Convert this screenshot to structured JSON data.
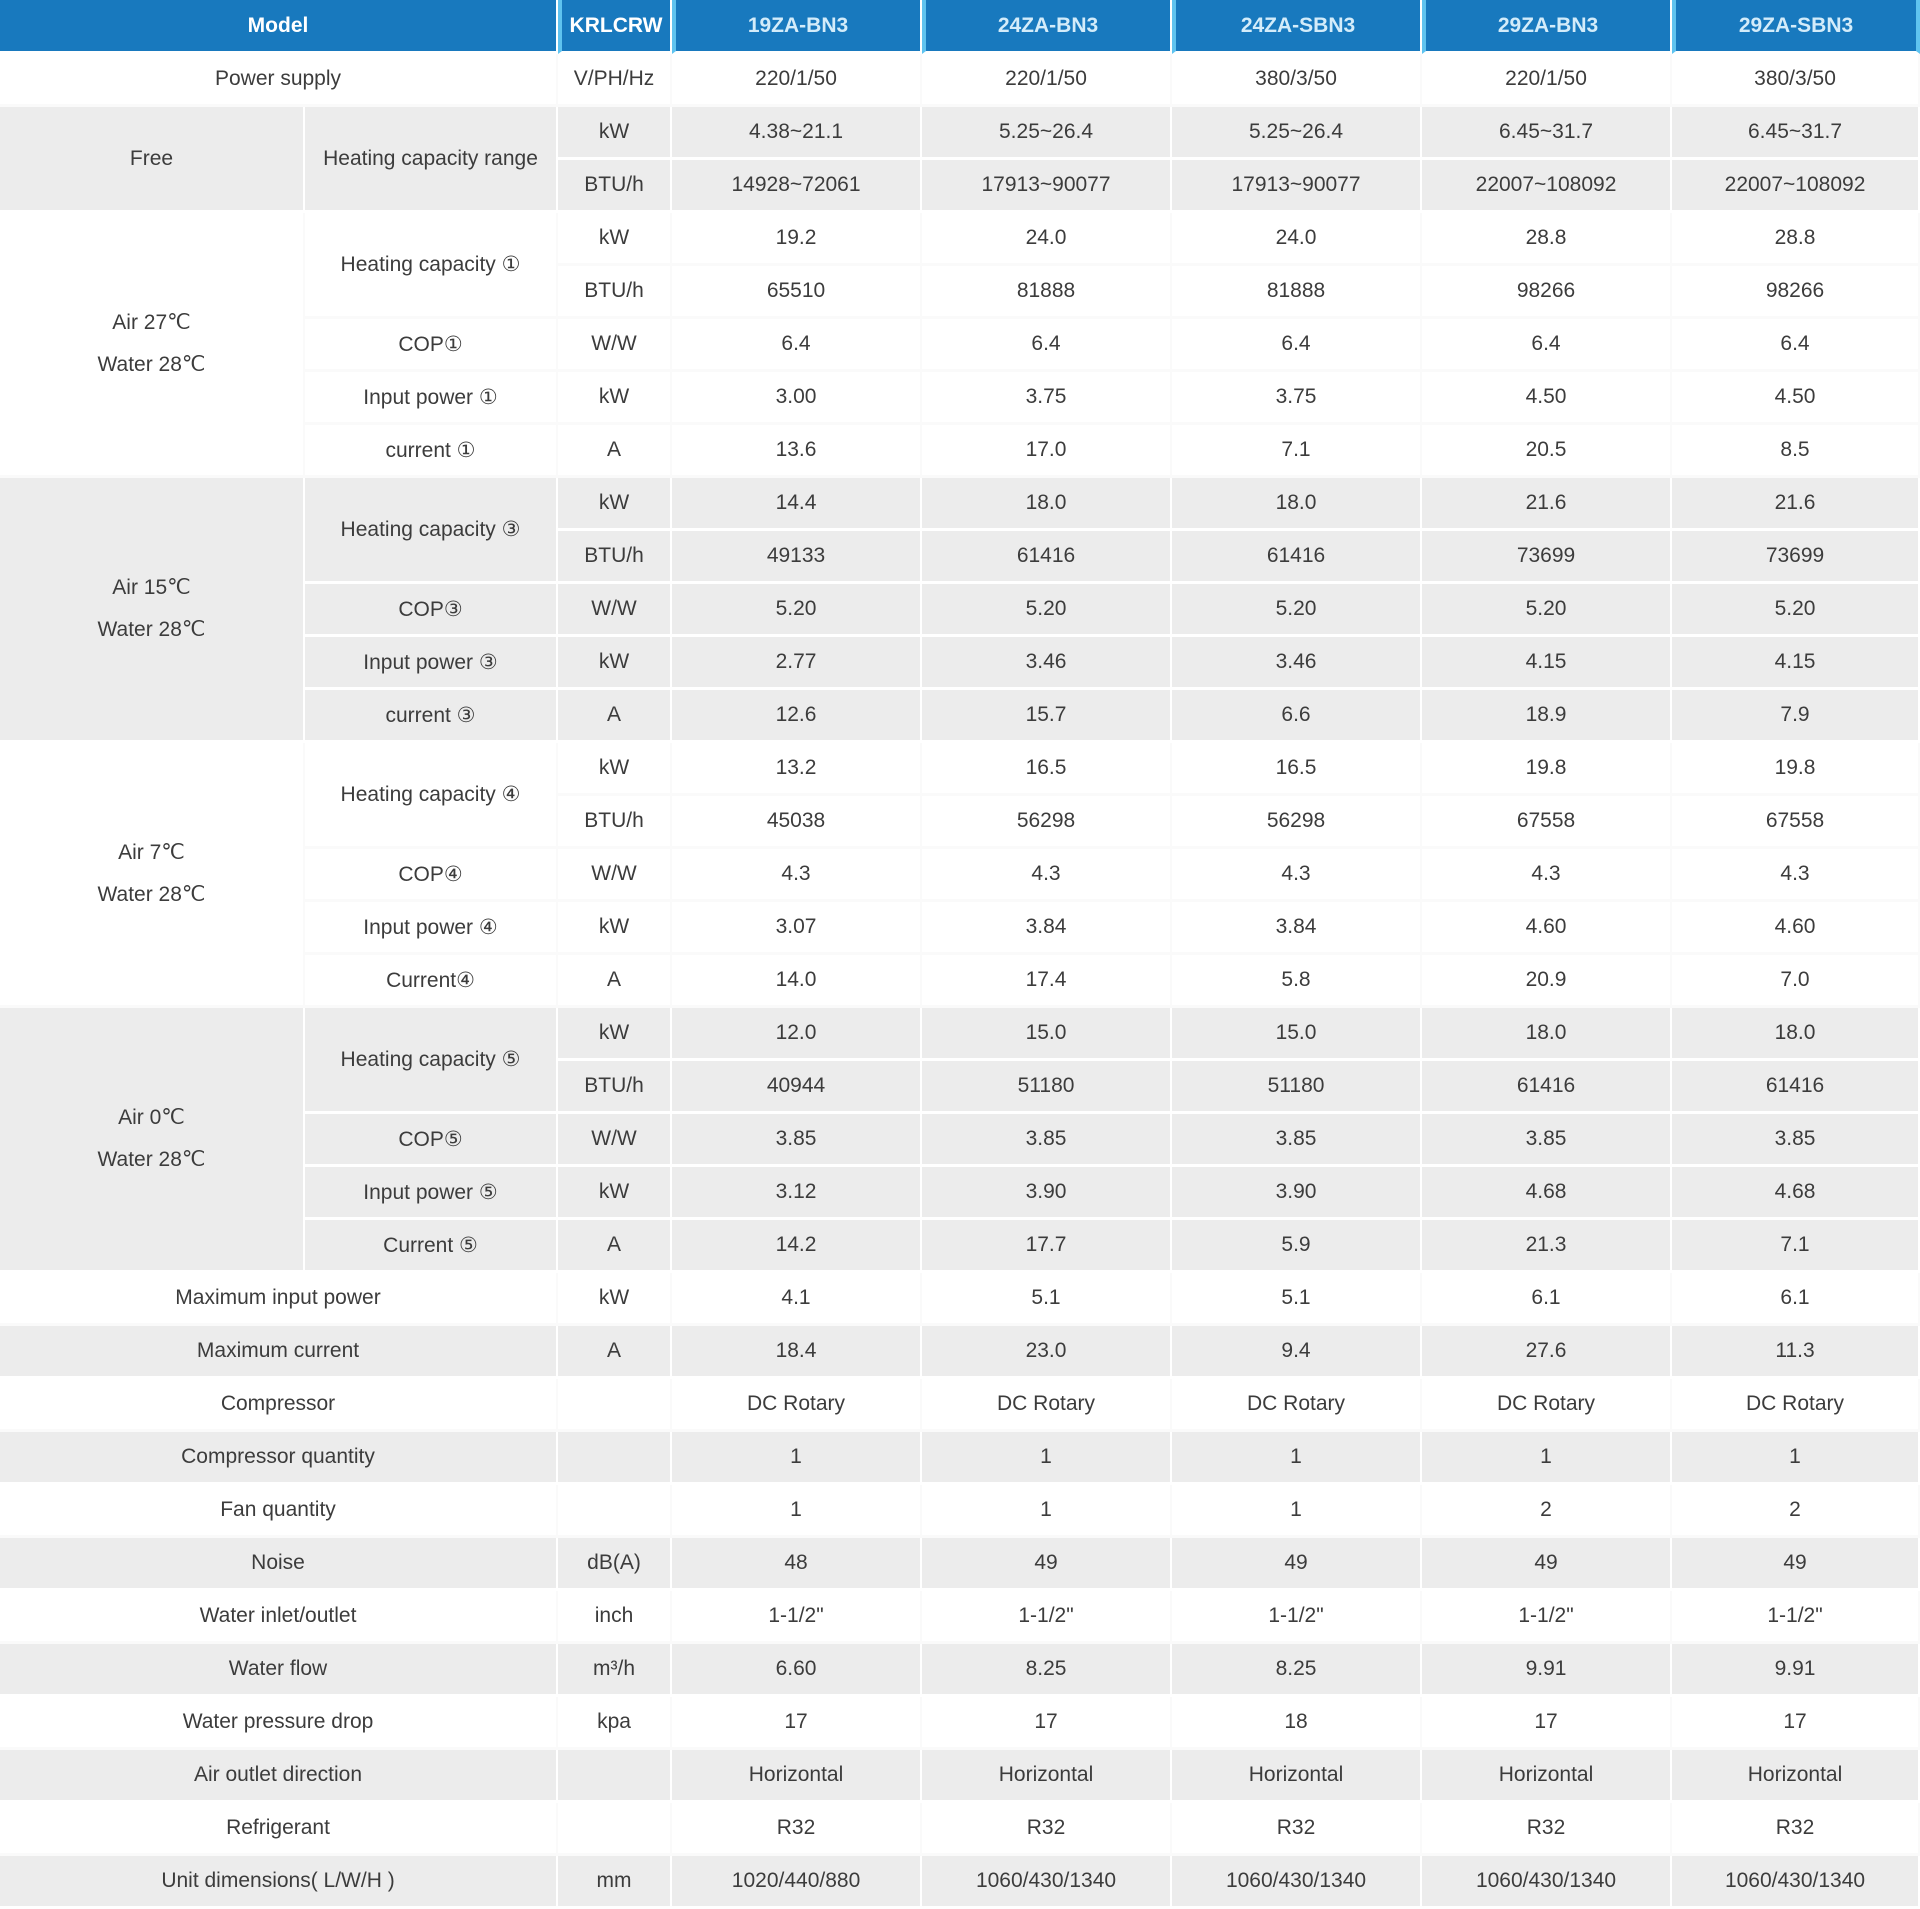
{
  "colors": {
    "header_bg": "#1879BE",
    "header_separator": "#5FC3EF",
    "header_text": "#FFFFFF",
    "model_text": "#D3ECFA",
    "row_gray": "#ECECEC",
    "row_white": "#FFFFFF",
    "body_text": "#3C3C3C"
  },
  "header": {
    "model_label": "Model",
    "brand": "KRLCRW",
    "models": [
      "19ZA-BN3",
      "24ZA-BN3",
      "24ZA-SBN3",
      "29ZA-BN3",
      "29ZA-SBN3"
    ]
  },
  "groups": [
    {
      "shade": "white",
      "section_lines": null,
      "params": [
        {
          "label": "Power supply",
          "full": true,
          "rows": [
            {
              "unit": "V/PH/Hz",
              "values": [
                "220/1/50",
                "220/1/50",
                "380/3/50",
                "220/1/50",
                "380/3/50"
              ]
            }
          ]
        }
      ]
    },
    {
      "shade": "gray",
      "section_lines": [
        "Free"
      ],
      "params": [
        {
          "label": "Heating capacity range",
          "full": false,
          "rows": [
            {
              "unit": "kW",
              "values": [
                "4.38~21.1",
                "5.25~26.4",
                "5.25~26.4",
                "6.45~31.7",
                "6.45~31.7"
              ]
            },
            {
              "unit": "BTU/h",
              "values": [
                "14928~72061",
                "17913~90077",
                "17913~90077",
                "22007~108092",
                "22007~108092"
              ]
            }
          ]
        }
      ]
    },
    {
      "shade": "white",
      "section_lines": [
        "Air 27℃",
        "Water 28℃"
      ],
      "params": [
        {
          "label": "Heating capacity ①",
          "full": false,
          "rows": [
            {
              "unit": "kW",
              "values": [
                "19.2",
                "24.0",
                "24.0",
                "28.8",
                "28.8"
              ]
            },
            {
              "unit": "BTU/h",
              "values": [
                "65510",
                "81888",
                "81888",
                "98266",
                "98266"
              ]
            }
          ]
        },
        {
          "label": "COP①",
          "full": false,
          "rows": [
            {
              "unit": "W/W",
              "values": [
                "6.4",
                "6.4",
                "6.4",
                "6.4",
                "6.4"
              ]
            }
          ]
        },
        {
          "label": "Input power ①",
          "full": false,
          "rows": [
            {
              "unit": "kW",
              "values": [
                "3.00",
                "3.75",
                "3.75",
                "4.50",
                "4.50"
              ]
            }
          ]
        },
        {
          "label": "current ①",
          "full": false,
          "rows": [
            {
              "unit": "A",
              "values": [
                "13.6",
                "17.0",
                "7.1",
                "20.5",
                "8.5"
              ]
            }
          ]
        }
      ]
    },
    {
      "shade": "gray",
      "section_lines": [
        "Air 15℃",
        "Water 28℃"
      ],
      "params": [
        {
          "label": "Heating capacity ③",
          "full": false,
          "rows": [
            {
              "unit": "kW",
              "values": [
                "14.4",
                "18.0",
                "18.0",
                "21.6",
                "21.6"
              ]
            },
            {
              "unit": "BTU/h",
              "values": [
                "49133",
                "61416",
                "61416",
                "73699",
                "73699"
              ]
            }
          ]
        },
        {
          "label": "COP③",
          "full": false,
          "rows": [
            {
              "unit": "W/W",
              "values": [
                "5.20",
                "5.20",
                "5.20",
                "5.20",
                "5.20"
              ]
            }
          ]
        },
        {
          "label": "Input power ③",
          "full": false,
          "rows": [
            {
              "unit": "kW",
              "values": [
                "2.77",
                "3.46",
                "3.46",
                "4.15",
                "4.15"
              ]
            }
          ]
        },
        {
          "label": "current ③",
          "full": false,
          "rows": [
            {
              "unit": "A",
              "values": [
                "12.6",
                "15.7",
                "6.6",
                "18.9",
                "7.9"
              ]
            }
          ]
        }
      ]
    },
    {
      "shade": "white",
      "section_lines": [
        "Air 7℃",
        "Water 28℃"
      ],
      "params": [
        {
          "label": "Heating capacity ④",
          "full": false,
          "rows": [
            {
              "unit": "kW",
              "values": [
                "13.2",
                "16.5",
                "16.5",
                "19.8",
                "19.8"
              ]
            },
            {
              "unit": "BTU/h",
              "values": [
                "45038",
                "56298",
                "56298",
                "67558",
                "67558"
              ]
            }
          ]
        },
        {
          "label": "COP④",
          "full": false,
          "rows": [
            {
              "unit": "W/W",
              "values": [
                "4.3",
                "4.3",
                "4.3",
                "4.3",
                "4.3"
              ]
            }
          ]
        },
        {
          "label": "Input power ④",
          "full": false,
          "rows": [
            {
              "unit": "kW",
              "values": [
                "3.07",
                "3.84",
                "3.84",
                "4.60",
                "4.60"
              ]
            }
          ]
        },
        {
          "label": "Current④",
          "full": false,
          "rows": [
            {
              "unit": "A",
              "values": [
                "14.0",
                "17.4",
                "5.8",
                "20.9",
                "7.0"
              ]
            }
          ]
        }
      ]
    },
    {
      "shade": "gray",
      "section_lines": [
        "Air 0℃",
        "Water 28℃"
      ],
      "params": [
        {
          "label": "Heating capacity ⑤",
          "full": false,
          "rows": [
            {
              "unit": "kW",
              "values": [
                "12.0",
                "15.0",
                "15.0",
                "18.0",
                "18.0"
              ]
            },
            {
              "unit": "BTU/h",
              "values": [
                "40944",
                "51180",
                "51180",
                "61416",
                "61416"
              ]
            }
          ]
        },
        {
          "label": "COP⑤",
          "full": false,
          "rows": [
            {
              "unit": "W/W",
              "values": [
                "3.85",
                "3.85",
                "3.85",
                "3.85",
                "3.85"
              ]
            }
          ]
        },
        {
          "label": "Input power ⑤",
          "full": false,
          "rows": [
            {
              "unit": "kW",
              "values": [
                "3.12",
                "3.90",
                "3.90",
                "4.68",
                "4.68"
              ]
            }
          ]
        },
        {
          "label": "Current ⑤",
          "full": false,
          "rows": [
            {
              "unit": "A",
              "values": [
                "14.2",
                "17.7",
                "5.9",
                "21.3",
                "7.1"
              ]
            }
          ]
        }
      ]
    },
    {
      "shade": "white",
      "section_lines": null,
      "params": [
        {
          "label": "Maximum input power",
          "full": true,
          "rows": [
            {
              "unit": "kW",
              "values": [
                "4.1",
                "5.1",
                "5.1",
                "6.1",
                "6.1"
              ]
            }
          ]
        }
      ]
    },
    {
      "shade": "gray",
      "section_lines": null,
      "params": [
        {
          "label": "Maximum current",
          "full": true,
          "rows": [
            {
              "unit": "A",
              "values": [
                "18.4",
                "23.0",
                "9.4",
                "27.6",
                "11.3"
              ]
            }
          ]
        }
      ]
    },
    {
      "shade": "white",
      "section_lines": null,
      "params": [
        {
          "label": "Compressor",
          "full": true,
          "rows": [
            {
              "unit": "",
              "values": [
                "DC Rotary",
                "DC Rotary",
                "DC Rotary",
                "DC Rotary",
                "DC Rotary"
              ]
            }
          ]
        }
      ]
    },
    {
      "shade": "gray",
      "section_lines": null,
      "params": [
        {
          "label": "Compressor quantity",
          "full": true,
          "rows": [
            {
              "unit": "",
              "values": [
                "1",
                "1",
                "1",
                "1",
                "1"
              ]
            }
          ]
        }
      ]
    },
    {
      "shade": "white",
      "section_lines": null,
      "params": [
        {
          "label": "Fan quantity",
          "full": true,
          "rows": [
            {
              "unit": "",
              "values": [
                "1",
                "1",
                "1",
                "2",
                "2"
              ]
            }
          ]
        }
      ]
    },
    {
      "shade": "gray",
      "section_lines": null,
      "params": [
        {
          "label": "Noise",
          "full": true,
          "rows": [
            {
              "unit": "dB(A)",
              "values": [
                "48",
                "49",
                "49",
                "49",
                "49"
              ]
            }
          ]
        }
      ]
    },
    {
      "shade": "white",
      "section_lines": null,
      "params": [
        {
          "label": "Water inlet/outlet",
          "full": true,
          "rows": [
            {
              "unit": "inch",
              "values": [
                "1-1/2\"",
                "1-1/2\"",
                "1-1/2\"",
                "1-1/2\"",
                "1-1/2\""
              ]
            }
          ]
        }
      ]
    },
    {
      "shade": "gray",
      "section_lines": null,
      "params": [
        {
          "label": "Water flow",
          "full": true,
          "rows": [
            {
              "unit": "m³/h",
              "values": [
                "6.60",
                "8.25",
                "8.25",
                "9.91",
                "9.91"
              ]
            }
          ]
        }
      ]
    },
    {
      "shade": "white",
      "section_lines": null,
      "params": [
        {
          "label": "Water pressure drop",
          "full": true,
          "rows": [
            {
              "unit": "kpa",
              "values": [
                "17",
                "17",
                "18",
                "17",
                "17"
              ]
            }
          ]
        }
      ]
    },
    {
      "shade": "gray",
      "section_lines": null,
      "params": [
        {
          "label": "Air outlet direction",
          "full": true,
          "rows": [
            {
              "unit": "",
              "values": [
                "Horizontal",
                "Horizontal",
                "Horizontal",
                "Horizontal",
                "Horizontal"
              ]
            }
          ]
        }
      ]
    },
    {
      "shade": "white",
      "section_lines": null,
      "params": [
        {
          "label": "Refrigerant",
          "full": true,
          "rows": [
            {
              "unit": "",
              "values": [
                "R32",
                "R32",
                "R32",
                "R32",
                "R32"
              ]
            }
          ]
        }
      ]
    },
    {
      "shade": "gray",
      "section_lines": null,
      "params": [
        {
          "label": "Unit dimensions( L/W/H )",
          "full": true,
          "rows": [
            {
              "unit": "mm",
              "values": [
                "1020/440/880",
                "1060/430/1340",
                "1060/430/1340",
                "1060/430/1340",
                "1060/430/1340"
              ]
            }
          ]
        }
      ]
    }
  ]
}
